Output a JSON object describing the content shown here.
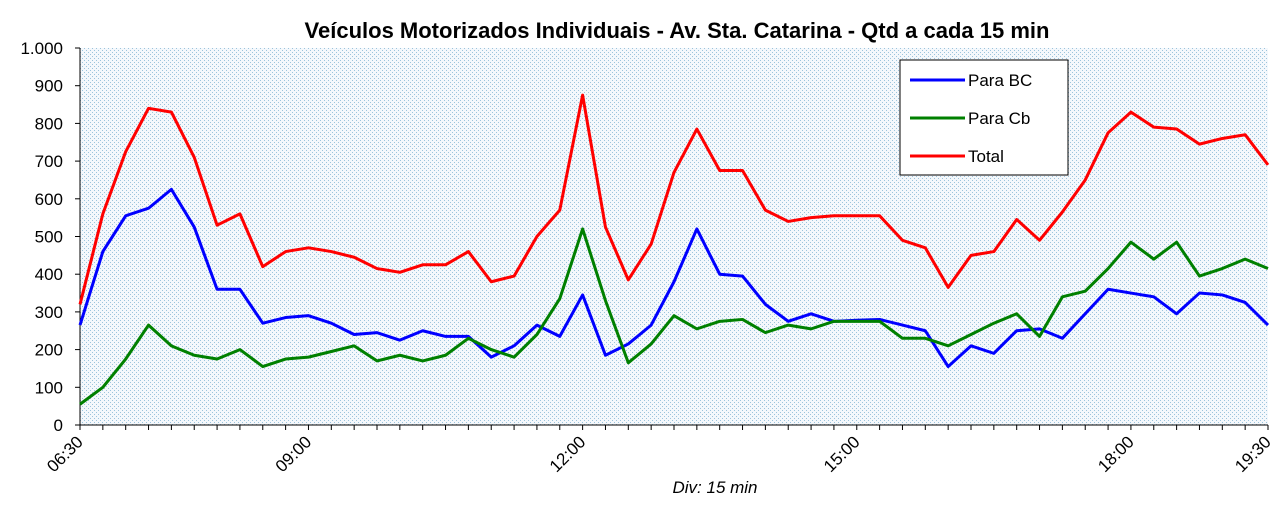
{
  "chart_data": {
    "type": "line",
    "title": "Veículos Motorizados Individuais - Av. Sta. Catarina - Qtd a cada 15 min",
    "x_label": "Div: 15 min",
    "categories": [
      "06:30",
      null,
      null,
      null,
      null,
      null,
      null,
      null,
      null,
      null,
      "09:00",
      null,
      null,
      null,
      null,
      null,
      null,
      null,
      null,
      null,
      null,
      null,
      "12:00",
      null,
      null,
      null,
      null,
      null,
      null,
      null,
      null,
      null,
      null,
      null,
      "15:00",
      null,
      null,
      null,
      null,
      null,
      null,
      null,
      null,
      null,
      null,
      null,
      "18:00",
      null,
      null,
      null,
      null,
      null,
      "19:30"
    ],
    "series": [
      {
        "name": "Para BC",
        "color": "#0000ff",
        "values": [
          265,
          460,
          555,
          575,
          625,
          525,
          360,
          360,
          270,
          285,
          290,
          270,
          240,
          245,
          225,
          250,
          235,
          235,
          180,
          210,
          265,
          235,
          345,
          185,
          215,
          265,
          380,
          520,
          400,
          395,
          320,
          275,
          295,
          275,
          278,
          280,
          265,
          250,
          155,
          210,
          190,
          250,
          255,
          230,
          295,
          360,
          350,
          340,
          295,
          350,
          345,
          325,
          265
        ]
      },
      {
        "name": "Para Cb",
        "color": "#008000",
        "values": [
          55,
          100,
          175,
          265,
          210,
          185,
          175,
          200,
          155,
          175,
          180,
          195,
          210,
          170,
          185,
          170,
          185,
          230,
          200,
          180,
          240,
          335,
          520,
          330,
          165,
          215,
          290,
          255,
          275,
          280,
          245,
          265,
          255,
          275,
          275,
          275,
          230,
          230,
          210,
          240,
          270,
          295,
          235,
          340,
          355,
          415,
          485,
          440,
          485,
          395,
          415,
          440,
          415
        ]
      },
      {
        "name": "Total",
        "color": "#ff0000",
        "values": [
          320,
          560,
          725,
          840,
          830,
          710,
          530,
          560,
          420,
          460,
          470,
          460,
          445,
          415,
          405,
          425,
          425,
          460,
          380,
          395,
          500,
          570,
          875,
          525,
          385,
          480,
          670,
          785,
          675,
          675,
          570,
          540,
          550,
          555,
          555,
          555,
          490,
          470,
          365,
          450,
          460,
          545,
          490,
          565,
          650,
          775,
          830,
          790,
          785,
          745,
          760,
          770,
          690
        ]
      }
    ],
    "ylim": [
      0,
      1000
    ],
    "yticks": [
      0,
      100,
      200,
      300,
      400,
      500,
      600,
      700,
      800,
      900,
      {
        "value": 1000,
        "label": "1.000"
      }
    ],
    "grid": false,
    "legend": "upper right"
  }
}
